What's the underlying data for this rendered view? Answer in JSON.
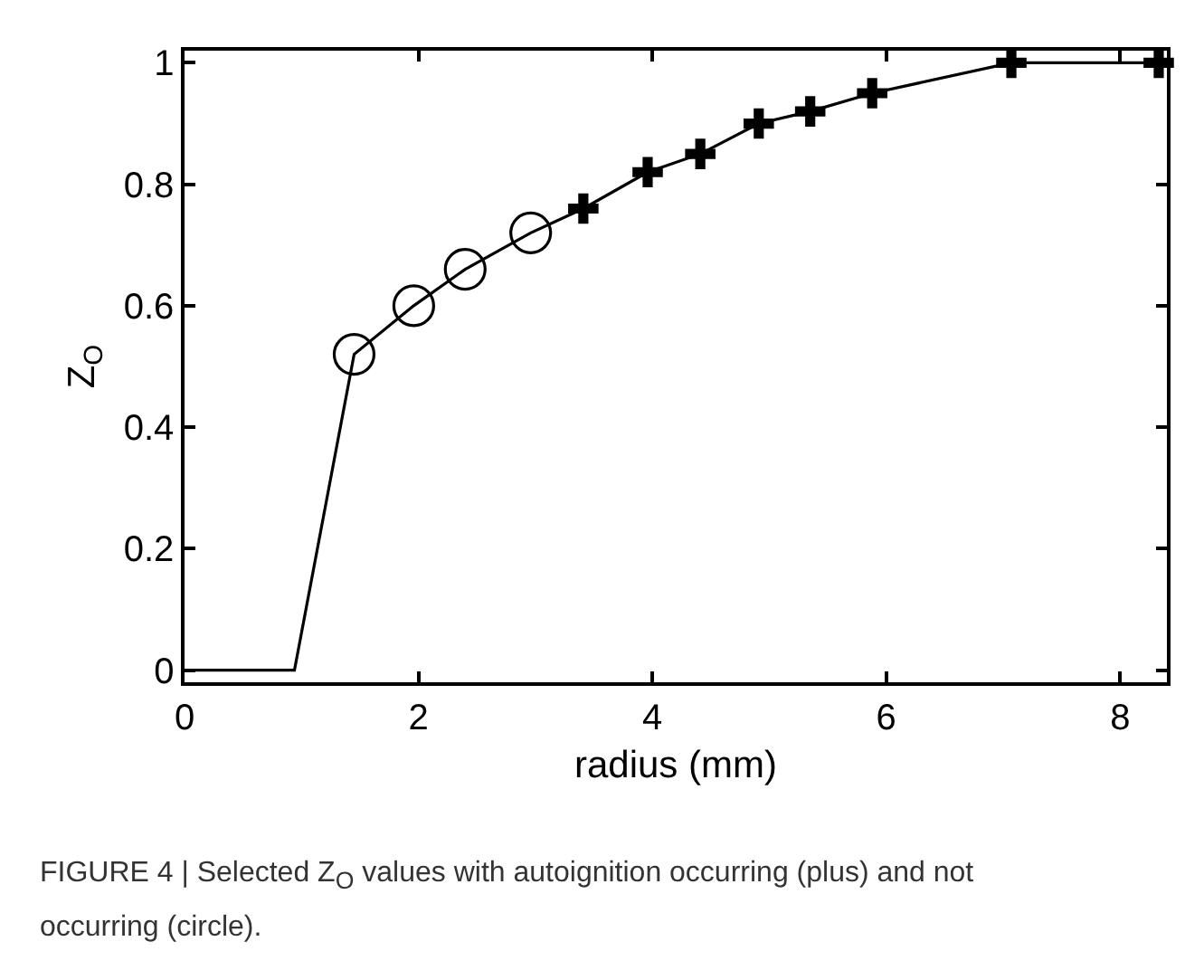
{
  "chart_data": {
    "type": "line",
    "xlabel": "radius (mm)",
    "ylabel": "Z$_{O}$",
    "xlim": [
      0,
      8.4
    ],
    "xticks": [
      0,
      2,
      4,
      6,
      8
    ],
    "ylim": [
      -0.02,
      1.02
    ],
    "yticks": [
      0,
      0.2,
      0.4,
      0.6,
      0.8,
      1
    ],
    "grid": false,
    "series": [
      {
        "type": "line",
        "color": "#000000",
        "marker": "none",
        "line_style": "solid",
        "x": [
          0,
          0.94,
          1.45,
          1.96,
          2.4,
          2.96,
          3.41,
          3.96,
          4.41,
          4.91,
          5.35,
          5.88,
          7.07,
          8.33
        ],
        "values": [
          0,
          0,
          0.52,
          0.6,
          0.66,
          0.72,
          0.76,
          0.82,
          0.85,
          0.9,
          0.92,
          0.95,
          1,
          1
        ]
      },
      {
        "type": "scatter",
        "color": "#000000",
        "marker": "circle",
        "x": [
          1.45,
          1.96,
          2.4,
          2.96
        ],
        "values": [
          0.52,
          0.6,
          0.66,
          0.72
        ]
      },
      {
        "type": "scatter",
        "color": "#000000",
        "marker": "cross",
        "x": [
          3.41,
          3.96,
          4.41,
          4.91,
          5.35,
          5.88,
          7.07,
          8.33
        ],
        "values": [
          0.76,
          0.82,
          0.85,
          0.9,
          0.92,
          0.95,
          1,
          1
        ]
      }
    ],
    "annotations": [
      "FIGURE 4 | Selected Z$_{O}$ values with autoignition occurring (plus) and not occurring (circle)."
    ]
  }
}
